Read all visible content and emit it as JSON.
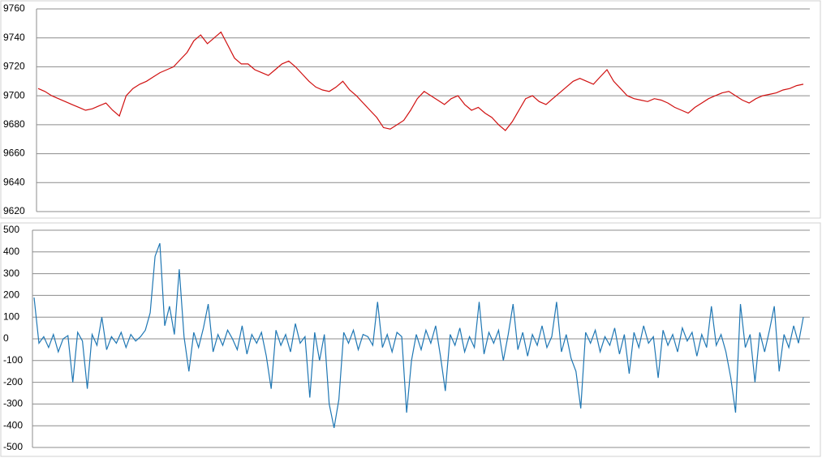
{
  "chart_data": [
    {
      "type": "line",
      "color": "#d01010",
      "grid": true,
      "ylim": [
        9620,
        9760
      ],
      "yticks": [
        9620,
        9640,
        9660,
        9680,
        9700,
        9720,
        9740,
        9760
      ],
      "values": [
        9705,
        9703,
        9700,
        9698,
        9696,
        9694,
        9692,
        9690,
        9691,
        9693,
        9695,
        9690,
        9686,
        9700,
        9705,
        9708,
        9710,
        9713,
        9716,
        9718,
        9720,
        9725,
        9730,
        9738,
        9742,
        9736,
        9740,
        9744,
        9735,
        9726,
        9722,
        9722,
        9718,
        9716,
        9714,
        9718,
        9722,
        9724,
        9720,
        9715,
        9710,
        9706,
        9704,
        9703,
        9706,
        9710,
        9704,
        9700,
        9695,
        9690,
        9685,
        9678,
        9677,
        9680,
        9683,
        9690,
        9698,
        9703,
        9700,
        9697,
        9694,
        9698,
        9700,
        9694,
        9690,
        9692,
        9688,
        9685,
        9680,
        9676,
        9682,
        9690,
        9698,
        9700,
        9696,
        9694,
        9698,
        9702,
        9706,
        9710,
        9712,
        9710,
        9708,
        9713,
        9718,
        9710,
        9705,
        9700,
        9698,
        9697,
        9696,
        9698,
        9697,
        9695,
        9692,
        9690,
        9688,
        9692,
        9695,
        9698,
        9700,
        9702,
        9703,
        9700,
        9697,
        9695,
        9698,
        9700,
        9701,
        9702,
        9704,
        9705,
        9707,
        9708
      ]
    },
    {
      "type": "line",
      "color": "#1f77b4",
      "grid": true,
      "ylim": [
        -500,
        500
      ],
      "yticks": [
        -500,
        -400,
        -300,
        -200,
        -100,
        0,
        100,
        200,
        300,
        400,
        500
      ],
      "values": [
        190,
        -20,
        10,
        -40,
        20,
        -60,
        0,
        15,
        -200,
        30,
        -10,
        -230,
        20,
        -30,
        100,
        -50,
        10,
        -20,
        30,
        -40,
        20,
        -10,
        10,
        40,
        120,
        380,
        440,
        60,
        150,
        20,
        320,
        10,
        -150,
        30,
        -40,
        50,
        160,
        -60,
        20,
        -30,
        40,
        0,
        -50,
        60,
        -70,
        20,
        -20,
        30,
        -80,
        -230,
        40,
        -30,
        20,
        -60,
        70,
        -20,
        10,
        -270,
        30,
        -100,
        20,
        -300,
        -410,
        -280,
        30,
        -20,
        40,
        -50,
        20,
        10,
        -30,
        170,
        -40,
        20,
        -60,
        30,
        10,
        -340,
        -100,
        20,
        -50,
        40,
        -20,
        60,
        -80,
        -240,
        20,
        -30,
        50,
        -60,
        10,
        -40,
        170,
        -70,
        30,
        -20,
        40,
        -100,
        20,
        160,
        -50,
        30,
        -80,
        20,
        -30,
        60,
        -40,
        10,
        170,
        -60,
        20,
        -90,
        -150,
        -320,
        30,
        -20,
        40,
        -60,
        10,
        -30,
        50,
        -70,
        20,
        -160,
        30,
        -40,
        60,
        -20,
        10,
        -180,
        40,
        -30,
        20,
        -60,
        50,
        -10,
        30,
        -80,
        20,
        -40,
        150,
        -30,
        20,
        -60,
        -180,
        -340,
        160,
        -40,
        20,
        -200,
        30,
        -60,
        40,
        150,
        -150,
        20,
        -40,
        60,
        -20,
        100
      ]
    }
  ]
}
